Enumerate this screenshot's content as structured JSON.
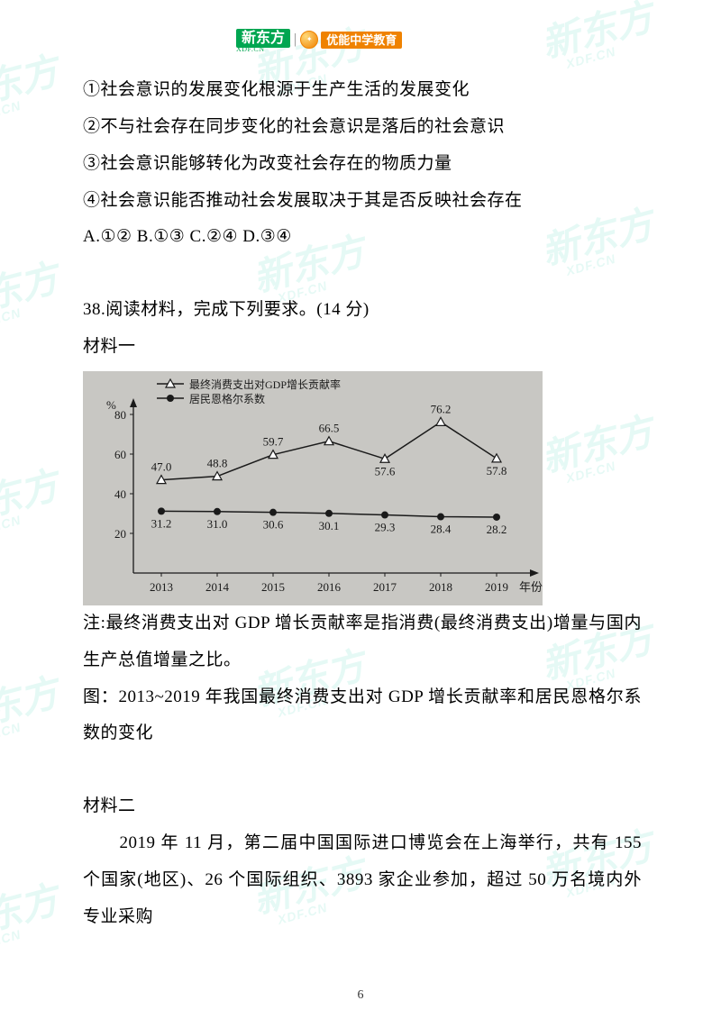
{
  "header": {
    "logo_main": "新东方",
    "logo_main_sub": "XDF.CN",
    "logo_right": "优能中学教育"
  },
  "watermark": {
    "text": "新东方",
    "sub": "XDF.CN"
  },
  "statements": {
    "s1": "①社会意识的发展变化根源于生产生活的发展变化",
    "s2": "②不与社会存在同步变化的社会意识是落后的社会意识",
    "s3": "③社会意识能够转化为改变社会存在的物质力量",
    "s4": "④社会意识能否推动社会发展取决于其是否反映社会存在",
    "choices": "A.①②  B.①③  C.②④  D.③④"
  },
  "q38": {
    "prompt": "38.阅读材料，完成下列要求。(14 分)",
    "mat1_label": "材料一",
    "note": "注:最终消费支出对 GDP 增长贡献率是指消费(最终消费支出)增量与国内生产总值增量之比。",
    "figure_caption": "图：2013~2019 年我国最终消费支出对 GDP 增长贡献率和居民恩格尔系数的变化",
    "mat2_label": "材料二",
    "mat2_p1": "　　2019 年 11 月，第二届中国国际进口博览会在上海举行，共有 155 个国家(地区)、26 个国际组织、3893 家企业参加，超过 50 万名境内外专业采购"
  },
  "chart": {
    "type": "line",
    "legend_series1": "最终消费支出对GDP增长贡献率",
    "legend_series2": "居民恩格尔系数",
    "series1_marker": "triangle",
    "series2_marker": "circle",
    "y_label": "%",
    "x_label": "年份",
    "ylim": [
      0,
      80
    ],
    "ytick_step": 20,
    "years": [
      "2013",
      "2014",
      "2015",
      "2016",
      "2017",
      "2018",
      "2019"
    ],
    "series1_values": [
      47.0,
      48.8,
      59.7,
      66.5,
      57.6,
      76.2,
      57.8
    ],
    "series2_values": [
      31.2,
      31.0,
      30.6,
      30.1,
      29.3,
      28.4,
      28.2
    ],
    "background_color": "#c8c7c3",
    "axis_color": "#1a1a1a",
    "tick_fontsize": 13,
    "label_fontsize": 13,
    "value_fontsize": 13,
    "line_color": "#1a1a1a"
  },
  "page_number": "6"
}
